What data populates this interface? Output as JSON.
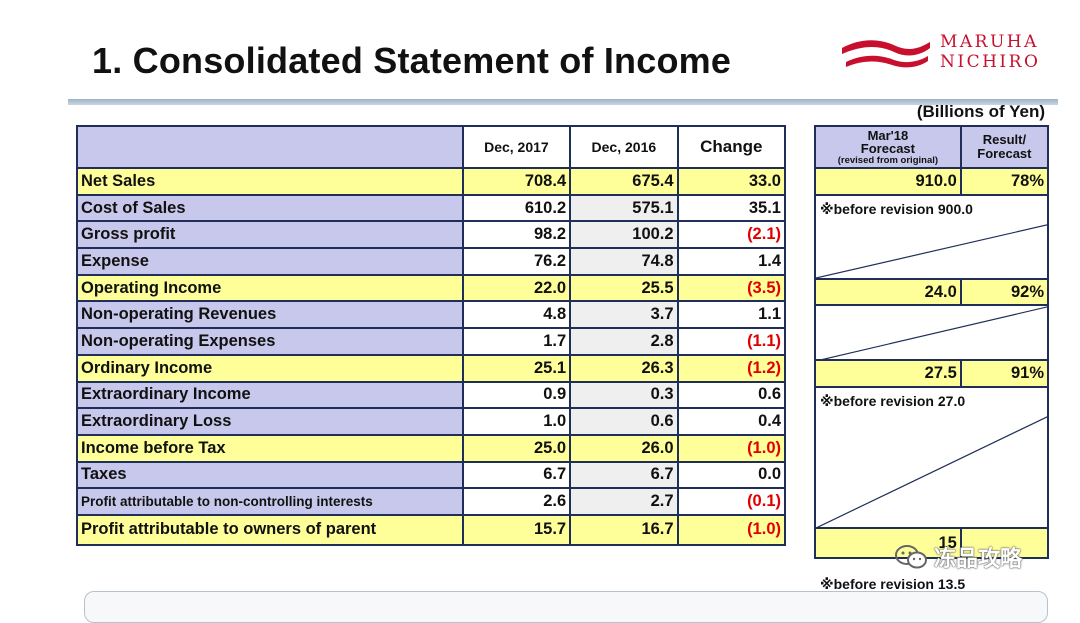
{
  "title": "1. Consolidated Statement of Income",
  "logo": {
    "line1": "MARUHA",
    "line2": "NICHIRO",
    "color": "#c8102e"
  },
  "units": "(Billions of Yen)",
  "main_table": {
    "headers": {
      "col1": "Dec, 2017",
      "col2": "Dec, 2016",
      "col3": "Change"
    },
    "rows": [
      {
        "label": "Net Sales",
        "v1": "708.4",
        "v2": "675.4",
        "change": "33.0",
        "highlight": true,
        "neg": false
      },
      {
        "label": "Cost of Sales",
        "v1": "610.2",
        "v2": "575.1",
        "change": "35.1",
        "highlight": false,
        "neg": false
      },
      {
        "label": "Gross profit",
        "v1": "98.2",
        "v2": "100.2",
        "change": "(2.1)",
        "highlight": false,
        "neg": true
      },
      {
        "label": "Expense",
        "v1": "76.2",
        "v2": "74.8",
        "change": "1.4",
        "highlight": false,
        "neg": false
      },
      {
        "label": "Operating Income",
        "v1": "22.0",
        "v2": "25.5",
        "change": "(3.5)",
        "highlight": true,
        "neg": true
      },
      {
        "label": "Non-operating Revenues",
        "v1": "4.8",
        "v2": "3.7",
        "change": "1.1",
        "highlight": false,
        "neg": false
      },
      {
        "label": "Non-operating Expenses",
        "v1": "1.7",
        "v2": "2.8",
        "change": "(1.1)",
        "highlight": false,
        "neg": true
      },
      {
        "label": "Ordinary Income",
        "v1": "25.1",
        "v2": "26.3",
        "change": "(1.2)",
        "highlight": true,
        "neg": true
      },
      {
        "label": "Extraordinary Income",
        "v1": "0.9",
        "v2": "0.3",
        "change": "0.6",
        "highlight": false,
        "neg": false
      },
      {
        "label": "Extraordinary Loss",
        "v1": "1.0",
        "v2": "0.6",
        "change": "0.4",
        "highlight": false,
        "neg": false
      },
      {
        "label": "Income before Tax",
        "v1": "25.0",
        "v2": "26.0",
        "change": "(1.0)",
        "highlight": true,
        "neg": true
      },
      {
        "label": "Taxes",
        "v1": "6.7",
        "v2": "6.7",
        "change": "0.0",
        "highlight": false,
        "neg": false
      },
      {
        "label": "Profit attributable to non-controlling interests",
        "v1": "2.6",
        "v2": "2.7",
        "change": "(0.1)",
        "highlight": false,
        "neg": true
      },
      {
        "label": "Profit attributable to owners of parent",
        "v1": "15.7",
        "v2": "16.7",
        "change": "(1.0)",
        "highlight": true,
        "neg": true
      }
    ]
  },
  "forecast_table": {
    "header1_line1": "Mar'18",
    "header1_line2": "Forecast",
    "header1_line3": "(revised from original)",
    "header2_line1": "Result/",
    "header2_line2": "Forecast",
    "net_sales": {
      "forecast": "910.0",
      "ratio": "78%"
    },
    "note_net_sales": "※before revision 900.0",
    "operating_income": {
      "forecast": "24.0",
      "ratio": "92%"
    },
    "ordinary_income": {
      "forecast": "27.5",
      "ratio": "91%"
    },
    "note_ordinary": "※before revision 27.0",
    "profit_owners": {
      "forecast": "15",
      "ratio": ""
    },
    "note_profit": "※before revision 13.5"
  },
  "watermark": "冻品攻略"
}
